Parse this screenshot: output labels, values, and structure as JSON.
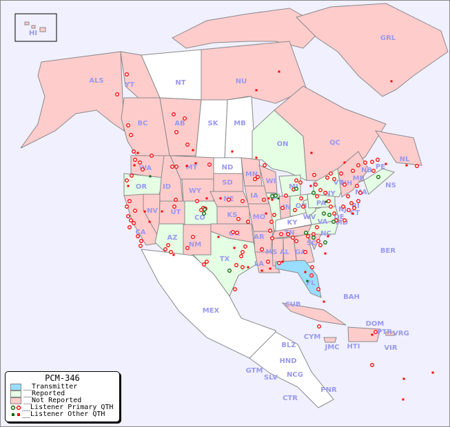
{
  "legend": {
    "title": "PCM-346",
    "items": [
      {
        "label": "__Transmitter",
        "color": "#99ddff"
      },
      {
        "label": "__Reported",
        "color": "#e5ffe5"
      },
      {
        "label": "__Not Reported",
        "color": "#ffcccc"
      },
      {
        "label": "__Listener Primary QTH",
        "marker": "open-circle",
        "colors": [
          "#006600",
          "#ff0000"
        ]
      },
      {
        "label": "__Listener Other QTH",
        "marker": "square",
        "colors": [
          "#006600",
          "#ff0000"
        ]
      }
    ]
  },
  "colors": {
    "ocean": "#f0f0ff",
    "transmitter": "#99ddff",
    "reported": "#e5ffe5",
    "not_reported": "#ffcccc",
    "no_data": "#ffffff",
    "border": "#888888",
    "label": "#9999ee"
  },
  "regions": [
    {
      "code": "HI",
      "status": "not_reported"
    },
    {
      "code": "ALS",
      "status": "not_reported"
    },
    {
      "code": "YT",
      "status": "not_reported"
    },
    {
      "code": "NT",
      "status": "none"
    },
    {
      "code": "NU",
      "status": "not_reported"
    },
    {
      "code": "GRL",
      "status": "not_reported"
    },
    {
      "code": "BC",
      "status": "not_reported"
    },
    {
      "code": "AB",
      "status": "not_reported"
    },
    {
      "code": "SK",
      "status": "none"
    },
    {
      "code": "MB",
      "status": "none"
    },
    {
      "code": "ON",
      "status": "reported"
    },
    {
      "code": "QC",
      "status": "not_reported"
    },
    {
      "code": "NL",
      "status": "not_reported"
    },
    {
      "code": "NB",
      "status": "not_reported"
    },
    {
      "code": "PE",
      "status": "not_reported"
    },
    {
      "code": "NS",
      "status": "reported"
    },
    {
      "code": "WA",
      "status": "not_reported"
    },
    {
      "code": "OR",
      "status": "reported"
    },
    {
      "code": "CA",
      "status": "not_reported"
    },
    {
      "code": "NV",
      "status": "not_reported"
    },
    {
      "code": "ID",
      "status": "not_reported"
    },
    {
      "code": "MT",
      "status": "not_reported"
    },
    {
      "code": "WY",
      "status": "not_reported"
    },
    {
      "code": "UT",
      "status": "not_reported"
    },
    {
      "code": "CO",
      "status": "reported"
    },
    {
      "code": "AZ",
      "status": "reported"
    },
    {
      "code": "NM",
      "status": "not_reported"
    },
    {
      "code": "ND",
      "status": "none"
    },
    {
      "code": "SD",
      "status": "not_reported"
    },
    {
      "code": "NE",
      "status": "not_reported"
    },
    {
      "code": "KS",
      "status": "not_reported"
    },
    {
      "code": "OK",
      "status": "not_reported"
    },
    {
      "code": "TX",
      "status": "reported"
    },
    {
      "code": "MN",
      "status": "not_reported"
    },
    {
      "code": "IA",
      "status": "not_reported"
    },
    {
      "code": "MO",
      "status": "not_reported"
    },
    {
      "code": "AR",
      "status": "not_reported"
    },
    {
      "code": "LA",
      "status": "not_reported"
    },
    {
      "code": "WI",
      "status": "not_reported"
    },
    {
      "code": "IL",
      "status": "reported"
    },
    {
      "code": "MI",
      "status": "reported"
    },
    {
      "code": "IN",
      "status": "not_reported"
    },
    {
      "code": "OH",
      "status": "reported"
    },
    {
      "code": "KY",
      "status": "none"
    },
    {
      "code": "TN",
      "status": "not_reported"
    },
    {
      "code": "MS",
      "status": "not_reported"
    },
    {
      "code": "AL",
      "status": "not_reported"
    },
    {
      "code": "GA",
      "status": "not_reported"
    },
    {
      "code": "SC",
      "status": "not_reported"
    },
    {
      "code": "NC",
      "status": "reported"
    },
    {
      "code": "VA",
      "status": "reported"
    },
    {
      "code": "WV",
      "status": "reported"
    },
    {
      "code": "PA",
      "status": "reported"
    },
    {
      "code": "NY",
      "status": "reported"
    },
    {
      "code": "VT",
      "status": "not_reported"
    },
    {
      "code": "NH",
      "status": "not_reported"
    },
    {
      "code": "ME",
      "status": "not_reported"
    },
    {
      "code": "MA",
      "status": "not_reported"
    },
    {
      "code": "CT",
      "status": "not_reported"
    },
    {
      "code": "RI",
      "status": "not_reported"
    },
    {
      "code": "NJ",
      "status": "not_reported"
    },
    {
      "code": "DE",
      "status": "not_reported"
    },
    {
      "code": "MD",
      "status": "not_reported"
    },
    {
      "code": "FL",
      "status": "transmitter"
    },
    {
      "code": "BER",
      "status": "none"
    },
    {
      "code": "BAH",
      "status": "none"
    },
    {
      "code": "CUB",
      "status": "not_reported"
    },
    {
      "code": "CYM",
      "status": "none"
    },
    {
      "code": "JMC",
      "status": "not_reported"
    },
    {
      "code": "HTI",
      "status": "not_reported"
    },
    {
      "code": "DOM",
      "status": "not_reported"
    },
    {
      "code": "PTR",
      "status": "not_reported"
    },
    {
      "code": "VRG",
      "status": "none"
    },
    {
      "code": "VIR",
      "status": "none"
    },
    {
      "code": "MEX",
      "status": "none"
    },
    {
      "code": "BLZ",
      "status": "none"
    },
    {
      "code": "GTM",
      "status": "none"
    },
    {
      "code": "SLV",
      "status": "none"
    },
    {
      "code": "HND",
      "status": "none"
    },
    {
      "code": "NCG",
      "status": "none"
    },
    {
      "code": "CTR",
      "status": "none"
    },
    {
      "code": "PNR",
      "status": "none"
    }
  ]
}
